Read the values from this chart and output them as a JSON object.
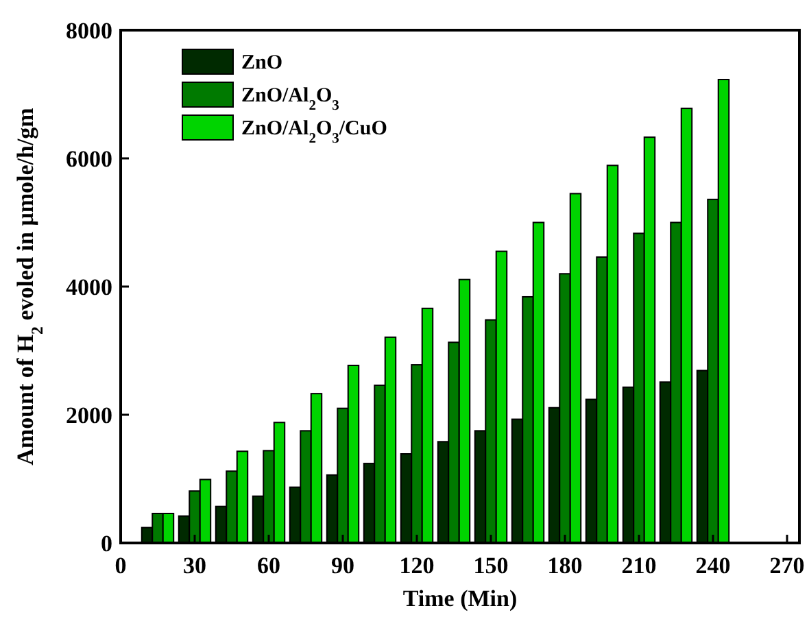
{
  "chart_data": {
    "type": "bar",
    "xlabel": "Time (Min)",
    "ylabel": "Amount of H$_{2}$ evoled in μmole/h/gm",
    "x": [
      15,
      30,
      45,
      60,
      75,
      90,
      105,
      120,
      135,
      150,
      165,
      180,
      195,
      210,
      225,
      240
    ],
    "series": [
      {
        "name": "ZnO",
        "color": "#002a00",
        "values": [
          240,
          420,
          570,
          730,
          870,
          1060,
          1240,
          1390,
          1580,
          1750,
          1930,
          2110,
          2240,
          2430,
          2510,
          2690
        ]
      },
      {
        "name": "ZnO/Al$_{2}$O$_{3}$",
        "color": "#007a00",
        "values": [
          460,
          810,
          1120,
          1440,
          1750,
          2100,
          2460,
          2780,
          3130,
          3480,
          3840,
          4200,
          4460,
          4830,
          5000,
          5360
        ]
      },
      {
        "name": "ZnO/Al$_{2}$O$_{3}$/CuO",
        "color": "#00d400",
        "values": [
          460,
          990,
          1430,
          1880,
          2330,
          2770,
          3210,
          3660,
          4110,
          4550,
          5000,
          5450,
          5890,
          6330,
          6780,
          7230
        ]
      }
    ],
    "xlim": [
      0,
      275
    ],
    "xticks": [
      0,
      30,
      60,
      90,
      120,
      150,
      180,
      210,
      240,
      270
    ],
    "ylim": [
      0,
      8000
    ],
    "yticks": [
      0,
      2000,
      4000,
      6000,
      8000
    ],
    "grid": false,
    "legend": "top left"
  }
}
